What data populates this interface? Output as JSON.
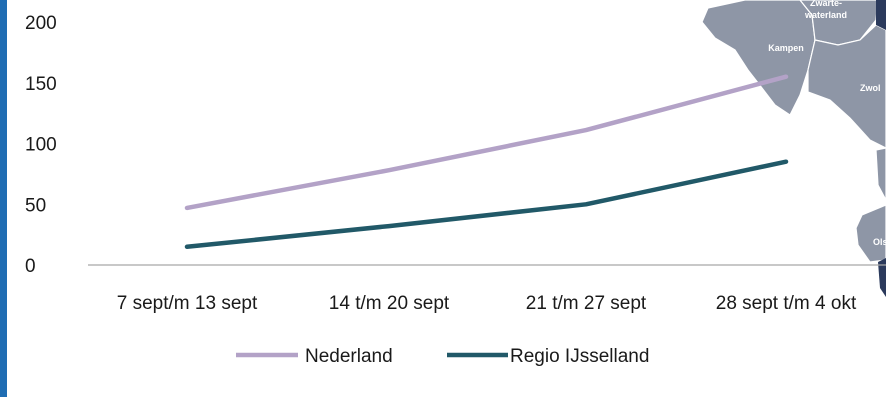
{
  "chart_data": {
    "type": "line",
    "categories": [
      "7 sept/m 13 sept",
      "14 t/m 20 sept",
      "21 t/m 27 sept",
      "28 sept t/m 4 okt"
    ],
    "series": [
      {
        "name": "Nederland",
        "values": [
          47,
          78,
          111,
          155
        ],
        "color": "#b3a2c7"
      },
      {
        "name": "Regio IJsselland",
        "values": [
          15,
          32,
          50,
          85
        ],
        "color": "#215968"
      }
    ],
    "y_ticks": [
      0,
      50,
      100,
      150,
      200
    ],
    "ylim": [
      0,
      200
    ],
    "grid": false,
    "legend_position": "bottom"
  },
  "map": {
    "labels": [
      "Zwarte-\nwaterland",
      "Kampen",
      "Zwol",
      "Ols"
    ],
    "fill_color": "#8e96a6",
    "dark_color": "#2b3a5c"
  },
  "accent_color": "#1f6db3"
}
